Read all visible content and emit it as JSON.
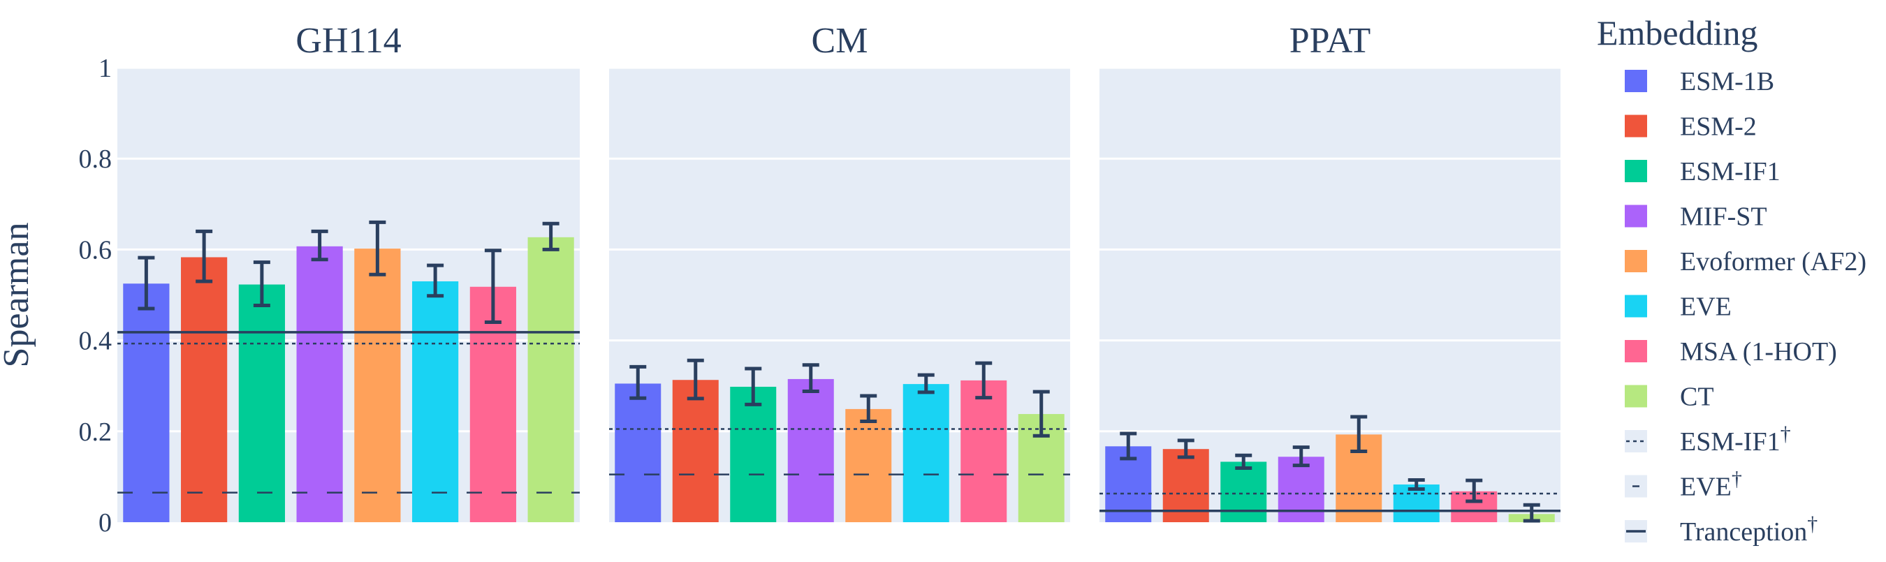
{
  "chart_data": {
    "type": "bar",
    "ylabel": "Spearman",
    "ylim": [
      0,
      1
    ],
    "yticks": [
      0,
      0.2,
      0.4,
      0.6,
      0.8,
      1
    ],
    "ytick_labels": [
      "0",
      "0.2",
      "0.4",
      "0.6",
      "0.8",
      "1"
    ],
    "grid": true,
    "legend": {
      "title": "Embedding",
      "placement": "right",
      "entries": [
        {
          "label": "ESM-1B",
          "kind": "bar",
          "color": "#636efa"
        },
        {
          "label": "ESM-2",
          "kind": "bar",
          "color": "#ef553b"
        },
        {
          "label": "ESM-IF1",
          "kind": "bar",
          "color": "#00cc96"
        },
        {
          "label": "MIF-ST",
          "kind": "bar",
          "color": "#ab63fa"
        },
        {
          "label": "Evoformer (AF2)",
          "kind": "bar",
          "color": "#ffa15a"
        },
        {
          "label": "EVE",
          "kind": "bar",
          "color": "#19d3f3"
        },
        {
          "label": "MSA (1-HOT)",
          "kind": "bar",
          "color": "#ff6692"
        },
        {
          "label": "CT",
          "kind": "bar",
          "color": "#b6e880"
        },
        {
          "label": "ESM-IF1",
          "sup": "†",
          "kind": "line",
          "dash": "dot"
        },
        {
          "label": "EVE",
          "sup": "†",
          "kind": "line",
          "dash": "dash"
        },
        {
          "label": "Tranception",
          "sup": "†",
          "kind": "line",
          "dash": "solid"
        }
      ]
    },
    "categories": [
      "ESM-1B",
      "ESM-2",
      "ESM-IF1",
      "MIF-ST",
      "Evoformer (AF2)",
      "EVE",
      "MSA (1-HOT)",
      "CT"
    ],
    "panels": [
      {
        "title": "GH114",
        "values": [
          0.525,
          0.583,
          0.523,
          0.607,
          0.602,
          0.53,
          0.518,
          0.627
        ],
        "error_low": [
          0.47,
          0.53,
          0.477,
          0.578,
          0.545,
          0.498,
          0.44,
          0.6
        ],
        "error_high": [
          0.582,
          0.64,
          0.572,
          0.64,
          0.66,
          0.565,
          0.598,
          0.657
        ],
        "baselines": {
          "ESM-IF1": 0.393,
          "EVE": 0.065,
          "Tranception": 0.418
        }
      },
      {
        "title": "CM",
        "values": [
          0.305,
          0.313,
          0.298,
          0.315,
          0.249,
          0.304,
          0.312,
          0.238
        ],
        "error_low": [
          0.273,
          0.272,
          0.259,
          0.288,
          0.222,
          0.286,
          0.274,
          0.19
        ],
        "error_high": [
          0.342,
          0.356,
          0.338,
          0.346,
          0.278,
          0.324,
          0.35,
          0.287
        ],
        "baselines": {
          "ESM-IF1": 0.205,
          "EVE": 0.105,
          "Tranception": null
        }
      },
      {
        "title": "PPAT",
        "values": [
          0.167,
          0.161,
          0.133,
          0.144,
          0.193,
          0.083,
          0.068,
          0.018
        ],
        "error_low": [
          0.14,
          0.143,
          0.119,
          0.125,
          0.156,
          0.073,
          0.046,
          0.003
        ],
        "error_high": [
          0.195,
          0.18,
          0.147,
          0.165,
          0.232,
          0.093,
          0.092,
          0.038
        ],
        "baselines": {
          "ESM-IF1": 0.063,
          "EVE": null,
          "Tranception": 0.025
        }
      }
    ]
  }
}
